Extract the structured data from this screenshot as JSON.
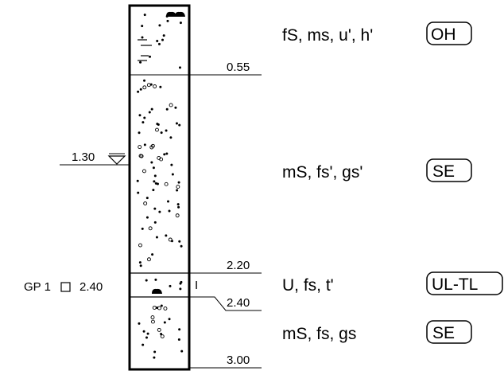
{
  "layers": [
    {
      "description": "fS, ms, u', h'",
      "group": "OH",
      "bottom_depth": "0.55"
    },
    {
      "description": "mS, fs', gs'",
      "group": "SE",
      "bottom_depth": "2.20"
    },
    {
      "description": "U, fs, t'",
      "group": "UL-TL",
      "bottom_depth": "2.40"
    },
    {
      "description": "mS, fs, gs",
      "group": "SE",
      "bottom_depth": "3.00"
    }
  ],
  "groundwater": {
    "depth": "1.30",
    "symbol": "water-table-triangle-icon"
  },
  "sample": {
    "label": "GP 1",
    "depth": "2.40",
    "marker": "I"
  },
  "colors": {
    "ink": "#000000",
    "background": "#ffffff"
  }
}
